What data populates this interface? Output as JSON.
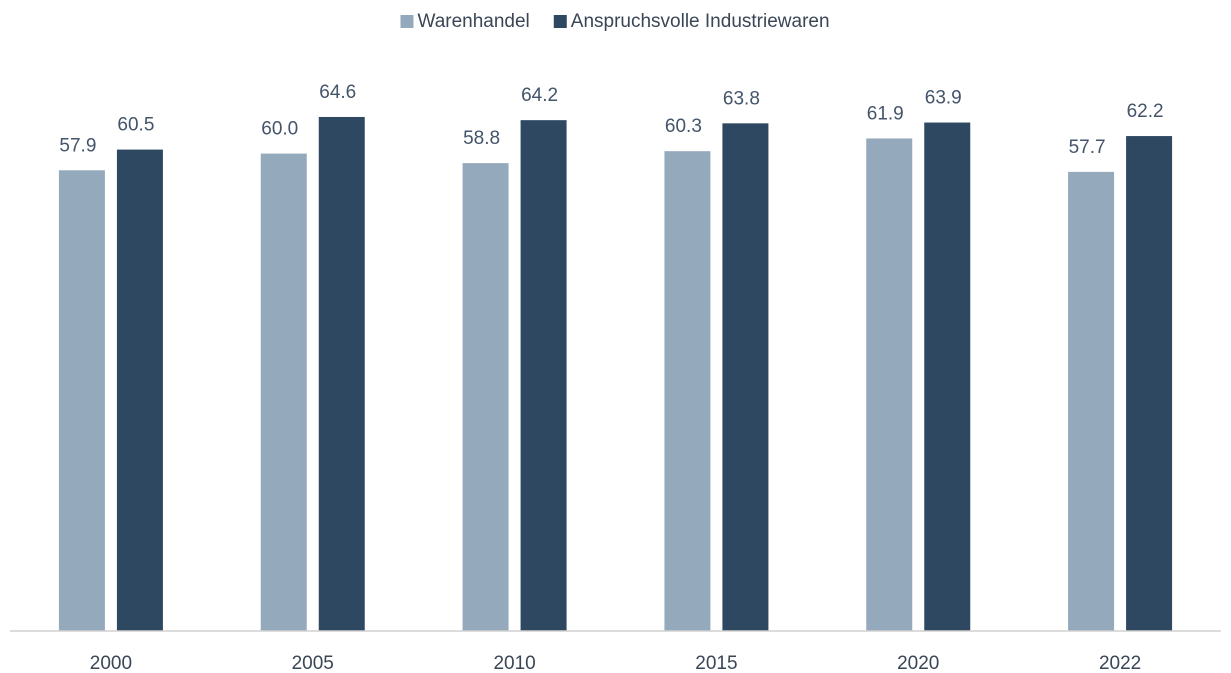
{
  "chart_data": {
    "type": "bar",
    "categories": [
      "2000",
      "2005",
      "2010",
      "2015",
      "2020",
      "2022"
    ],
    "series": [
      {
        "name": "Warenhandel",
        "color": "#95a9bc",
        "values": [
          57.9,
          60.0,
          58.8,
          60.3,
          61.9,
          57.7
        ],
        "value_labels": [
          "57.9",
          "60.0",
          "58.8",
          "60.3",
          "61.9",
          "57.7"
        ]
      },
      {
        "name": "Anspruchsvolle Industriewaren",
        "color": "#2e4861",
        "values": [
          60.5,
          64.6,
          64.2,
          63.8,
          63.9,
          62.2
        ],
        "value_labels": [
          "60.5",
          "64.6",
          "64.2",
          "63.8",
          "63.9",
          "62.2"
        ]
      }
    ],
    "ylim": [
      0,
      70
    ],
    "legend": "top"
  }
}
